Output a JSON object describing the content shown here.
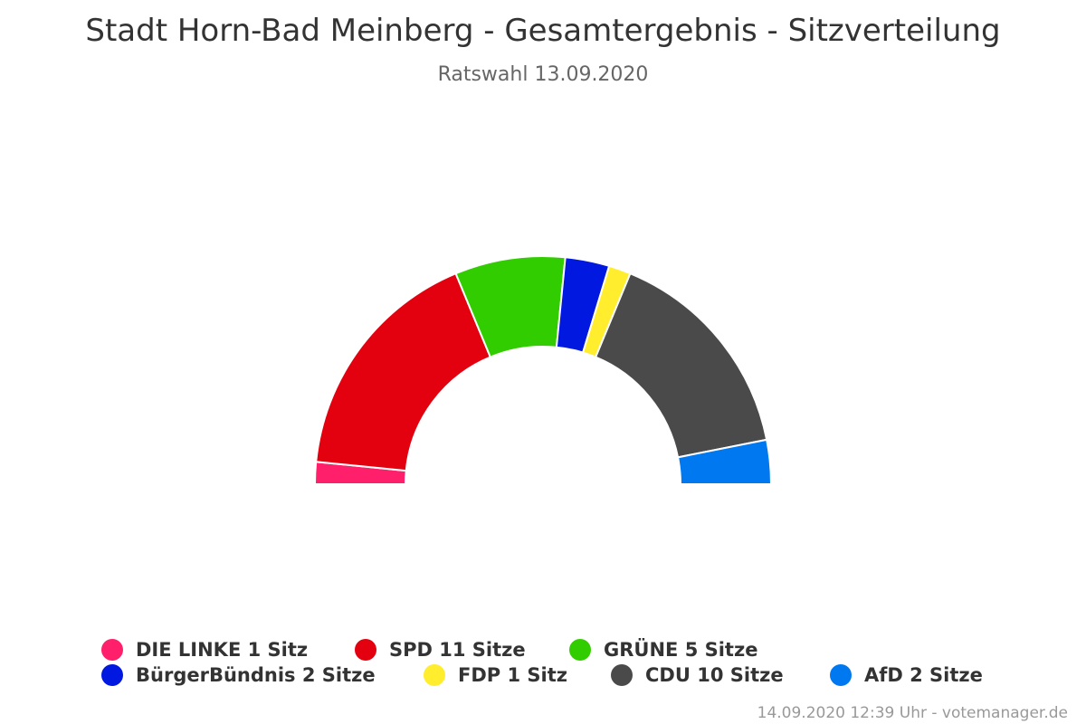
{
  "chart_data": {
    "type": "pie",
    "variant": "semicircle-parliament",
    "title": "Stadt Horn-Bad Meinberg - Gesamtergebnis - Sitzverteilung",
    "subtitle": "Ratswahl 13.09.2020",
    "legend_placement": "bottom",
    "series": [
      {
        "name": "DIE LINKE",
        "value": 1,
        "label": "DIE LINKE 1 Sitz",
        "color": "#ff1f6a"
      },
      {
        "name": "SPD",
        "value": 11,
        "label": "SPD 11 Sitze",
        "color": "#e3000f"
      },
      {
        "name": "GRÜNE",
        "value": 5,
        "label": "GRÜNE 5 Sitze",
        "color": "#32cd00"
      },
      {
        "name": "BürgerBündnis",
        "value": 2,
        "label": "BürgerBündnis 2 Sitze",
        "color": "#0018e0"
      },
      {
        "name": "FDP",
        "value": 1,
        "label": "FDP 1 Sitz",
        "color": "#ffed2e"
      },
      {
        "name": "CDU",
        "value": 10,
        "label": "CDU 10 Sitze",
        "color": "#4a4a4a"
      },
      {
        "name": "AfD",
        "value": 2,
        "label": "AfD 2 Sitze",
        "color": "#0078f0"
      }
    ]
  },
  "credits": "14.09.2020 12:39 Uhr - votemanager.de"
}
